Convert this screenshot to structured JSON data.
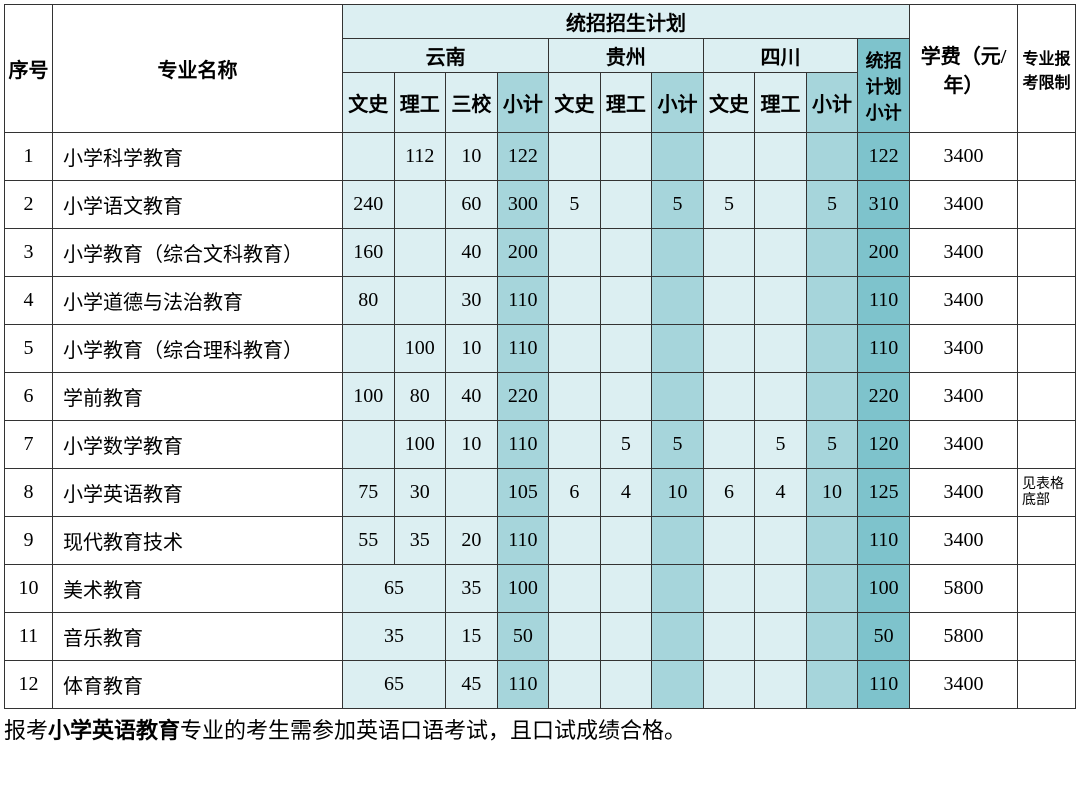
{
  "colors": {
    "bg_light": "#dceff2",
    "bg_mid": "#a6d5db",
    "bg_dark": "#7ec3cc",
    "border": "#333333",
    "page_bg": "#ffffff"
  },
  "headers": {
    "idx": "序号",
    "name": "专业名称",
    "plan_group": "统招招生计划",
    "prov_yn": "云南",
    "prov_gz": "贵州",
    "prov_sc": "四川",
    "plan_total": "统招计划小计",
    "fee": "学费（元/年）",
    "limit": "专业报考限制",
    "wenshi": "文史",
    "ligong": "理工",
    "sanxiao": "三校",
    "subtotal": "小计"
  },
  "rows": [
    {
      "idx": "1",
      "name": "小学科学教育",
      "yn_ws": "",
      "yn_lg": "112",
      "yn_sx": "10",
      "yn_sub": "122",
      "gz_ws": "",
      "gz_lg": "",
      "gz_sub": "",
      "sc_ws": "",
      "sc_lg": "",
      "sc_sub": "",
      "tot": "122",
      "fee": "3400",
      "lim": "",
      "merge": false
    },
    {
      "idx": "2",
      "name": "小学语文教育",
      "yn_ws": "240",
      "yn_lg": "",
      "yn_sx": "60",
      "yn_sub": "300",
      "gz_ws": "5",
      "gz_lg": "",
      "gz_sub": "5",
      "sc_ws": "5",
      "sc_lg": "",
      "sc_sub": "5",
      "tot": "310",
      "fee": "3400",
      "lim": "",
      "merge": false
    },
    {
      "idx": "3",
      "name": "小学教育（综合文科教育）",
      "yn_ws": "160",
      "yn_lg": "",
      "yn_sx": "40",
      "yn_sub": "200",
      "gz_ws": "",
      "gz_lg": "",
      "gz_sub": "",
      "sc_ws": "",
      "sc_lg": "",
      "sc_sub": "",
      "tot": "200",
      "fee": "3400",
      "lim": "",
      "merge": false
    },
    {
      "idx": "4",
      "name": "小学道德与法治教育",
      "yn_ws": "80",
      "yn_lg": "",
      "yn_sx": "30",
      "yn_sub": "110",
      "gz_ws": "",
      "gz_lg": "",
      "gz_sub": "",
      "sc_ws": "",
      "sc_lg": "",
      "sc_sub": "",
      "tot": "110",
      "fee": "3400",
      "lim": "",
      "merge": false
    },
    {
      "idx": "5",
      "name": "小学教育（综合理科教育）",
      "yn_ws": "",
      "yn_lg": "100",
      "yn_sx": "10",
      "yn_sub": "110",
      "gz_ws": "",
      "gz_lg": "",
      "gz_sub": "",
      "sc_ws": "",
      "sc_lg": "",
      "sc_sub": "",
      "tot": "110",
      "fee": "3400",
      "lim": "",
      "merge": false
    },
    {
      "idx": "6",
      "name": "学前教育",
      "yn_ws": "100",
      "yn_lg": "80",
      "yn_sx": "40",
      "yn_sub": "220",
      "gz_ws": "",
      "gz_lg": "",
      "gz_sub": "",
      "sc_ws": "",
      "sc_lg": "",
      "sc_sub": "",
      "tot": "220",
      "fee": "3400",
      "lim": "",
      "merge": false
    },
    {
      "idx": "7",
      "name": "小学数学教育",
      "yn_ws": "",
      "yn_lg": "100",
      "yn_sx": "10",
      "yn_sub": "110",
      "gz_ws": "",
      "gz_lg": "5",
      "gz_sub": "5",
      "sc_ws": "",
      "sc_lg": "5",
      "sc_sub": "5",
      "tot": "120",
      "fee": "3400",
      "lim": "",
      "merge": false
    },
    {
      "idx": "8",
      "name": "小学英语教育",
      "yn_ws": "75",
      "yn_lg": "30",
      "yn_sx": "",
      "yn_sub": "105",
      "gz_ws": "6",
      "gz_lg": "4",
      "gz_sub": "10",
      "sc_ws": "6",
      "sc_lg": "4",
      "sc_sub": "10",
      "tot": "125",
      "fee": "3400",
      "lim": "见表格底部",
      "merge": false
    },
    {
      "idx": "9",
      "name": "现代教育技术",
      "yn_ws": "55",
      "yn_lg": "35",
      "yn_sx": "20",
      "yn_sub": "110",
      "gz_ws": "",
      "gz_lg": "",
      "gz_sub": "",
      "sc_ws": "",
      "sc_lg": "",
      "sc_sub": "",
      "tot": "110",
      "fee": "3400",
      "lim": "",
      "merge": false
    },
    {
      "idx": "10",
      "name": "美术教育",
      "yn_merged": "65",
      "yn_sx": "35",
      "yn_sub": "100",
      "gz_ws": "",
      "gz_lg": "",
      "gz_sub": "",
      "sc_ws": "",
      "sc_lg": "",
      "sc_sub": "",
      "tot": "100",
      "fee": "5800",
      "lim": "",
      "merge": true
    },
    {
      "idx": "11",
      "name": "音乐教育",
      "yn_merged": "35",
      "yn_sx": "15",
      "yn_sub": "50",
      "gz_ws": "",
      "gz_lg": "",
      "gz_sub": "",
      "sc_ws": "",
      "sc_lg": "",
      "sc_sub": "",
      "tot": "50",
      "fee": "5800",
      "lim": "",
      "merge": true
    },
    {
      "idx": "12",
      "name": "体育教育",
      "yn_merged": "65",
      "yn_sx": "45",
      "yn_sub": "110",
      "gz_ws": "",
      "gz_lg": "",
      "gz_sub": "",
      "sc_ws": "",
      "sc_lg": "",
      "sc_sub": "",
      "tot": "110",
      "fee": "3400",
      "lim": "",
      "merge": true
    }
  ],
  "footnote": {
    "prefix": "报考",
    "bold": "小学英语教育",
    "suffix": "专业的考生需参加英语口语考试，且口试成绩合格。"
  }
}
